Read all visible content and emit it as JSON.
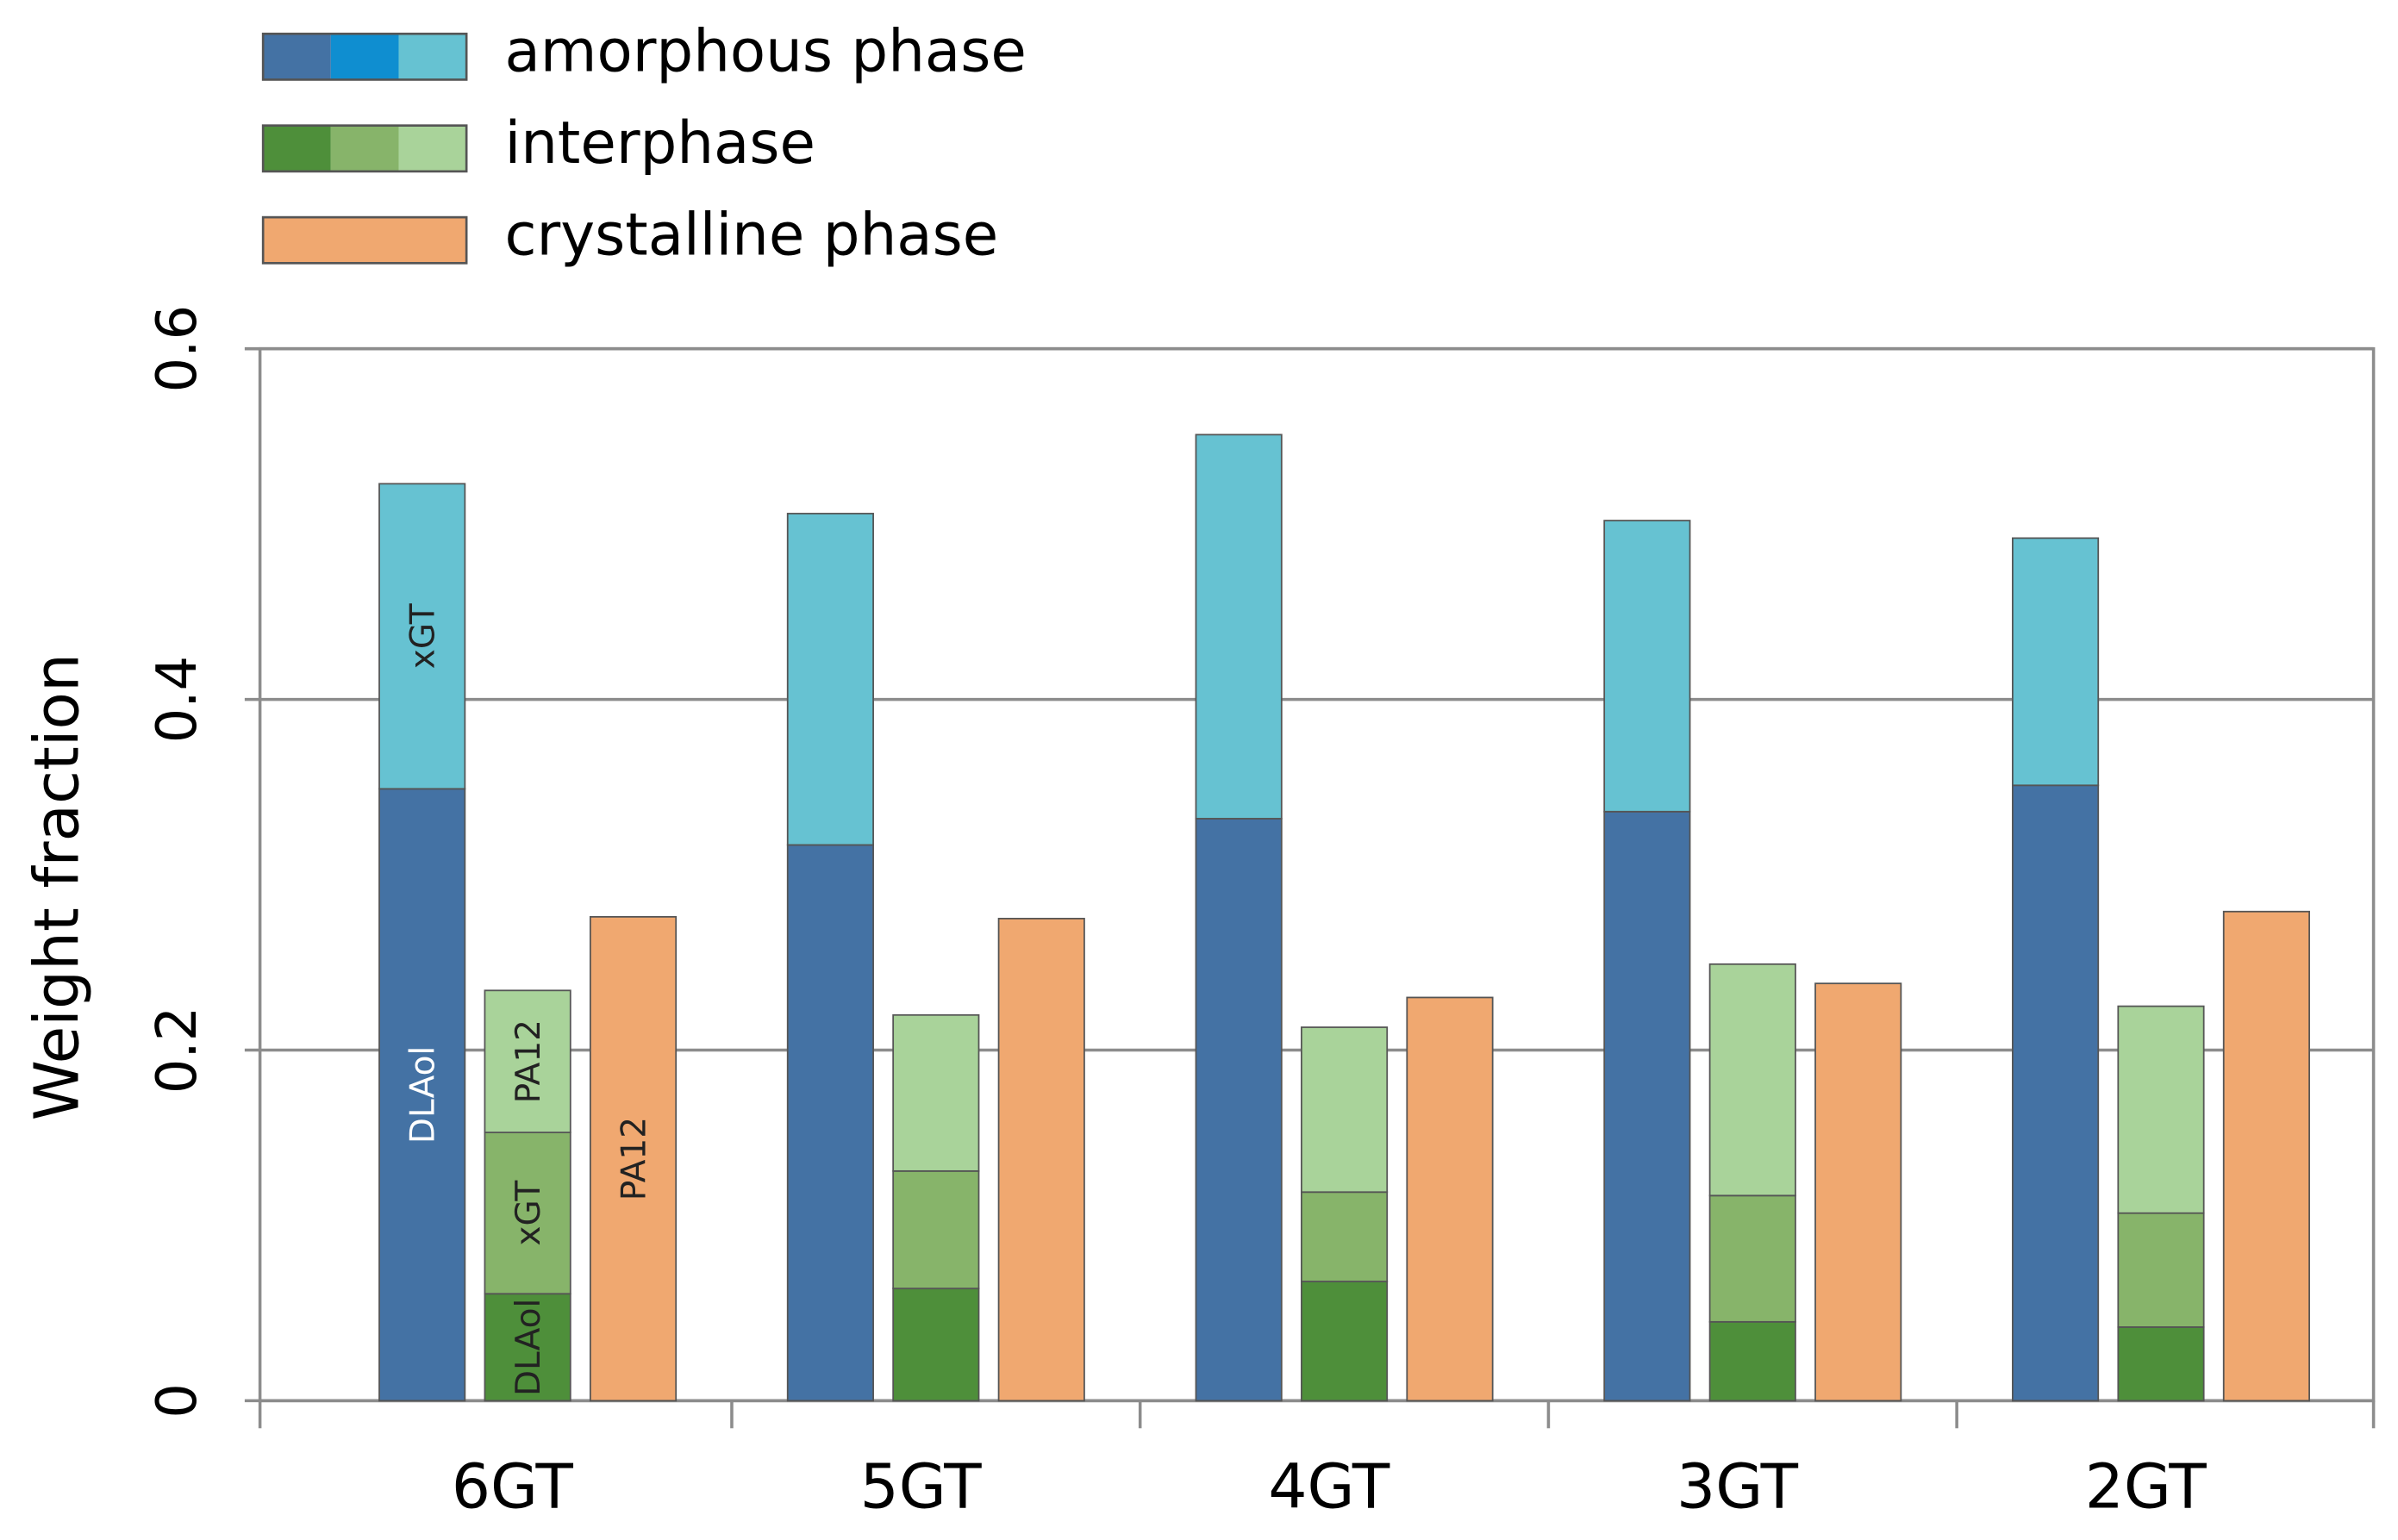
{
  "chart_data": {
    "type": "grouped-stacked-bar",
    "y_label": "Weight fraction",
    "categories": [
      "6GT",
      "5GT",
      "4GT",
      "3GT",
      "2GT"
    ],
    "ylim": [
      0,
      0.6
    ],
    "yticks": [
      0,
      0.2,
      0.4,
      0.6
    ],
    "grid": true,
    "series": [
      {
        "name": "amorphous phase",
        "legend_colors": [
          "#4472a4",
          "#0f8ed0",
          "#66c2d2"
        ],
        "segments": [
          {
            "label": "DLAol",
            "color": "#4472a4",
            "label_color": "#ffffff",
            "values": [
              0.349,
              0.317,
              0.332,
              0.336,
              0.351
            ]
          },
          {
            "label": "xGT",
            "color": "#66c2d2",
            "label_color": "#222222",
            "values": [
              0.174,
              0.189,
              0.219,
              0.166,
              0.141
            ]
          }
        ]
      },
      {
        "name": "interphase",
        "legend_colors": [
          "#4e8f3a",
          "#87b46a",
          "#a9d39a"
        ],
        "segments": [
          {
            "label": "DLAol",
            "color": "#4e8f3a",
            "label_color": "#222222",
            "values": [
              0.061,
              0.064,
              0.068,
              0.045,
              0.042
            ]
          },
          {
            "label": "xGT",
            "color": "#87b46a",
            "label_color": "#222222",
            "values": [
              0.092,
              0.067,
              0.051,
              0.072,
              0.065
            ]
          },
          {
            "label": "PA12",
            "color": "#a9d39a",
            "label_color": "#222222",
            "values": [
              0.081,
              0.089,
              0.094,
              0.132,
              0.118
            ]
          }
        ]
      },
      {
        "name": "crystalline phase",
        "legend_colors": [
          "#f0a870"
        ],
        "segments": [
          {
            "label": "PA12",
            "color": "#f0a870",
            "label_color": "#222222",
            "values": [
              0.276,
              0.275,
              0.23,
              0.238,
              0.279
            ]
          }
        ]
      }
    ]
  }
}
